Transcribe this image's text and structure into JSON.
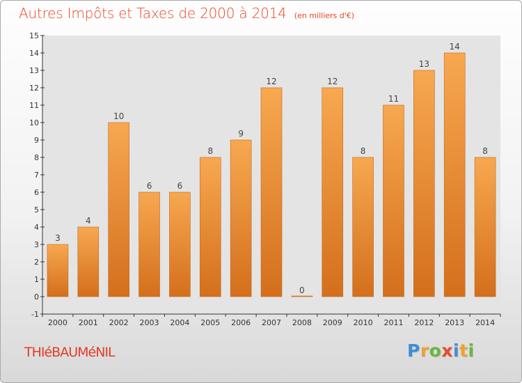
{
  "chart_data": {
    "type": "bar",
    "title": "Autres Impôts et Taxes de 2000 à 2014",
    "subtitle": "(en milliers d'€)",
    "categories": [
      "2000",
      "2001",
      "2002",
      "2003",
      "2004",
      "2005",
      "2006",
      "2007",
      "2008",
      "2009",
      "2010",
      "2011",
      "2012",
      "2013",
      "2014"
    ],
    "values": [
      3,
      4,
      10,
      6,
      6,
      8,
      9,
      12,
      0,
      12,
      8,
      11,
      13,
      14,
      8
    ],
    "ylim": [
      -1,
      15
    ],
    "yticks": [
      -1,
      0,
      1,
      2,
      3,
      4,
      5,
      6,
      7,
      8,
      9,
      10,
      11,
      12,
      13,
      14,
      15
    ],
    "grid": false,
    "xlabel": "",
    "ylabel": "",
    "bar_color": "#f5a04a",
    "bar_color_dark": "#d9731f"
  },
  "footer": {
    "commune": "THIéBAUMéNIL",
    "logo_letters": [
      {
        "ch": "P",
        "color": "#3d8ed8"
      },
      {
        "ch": "r",
        "color": "#f0a030"
      },
      {
        "ch": "o",
        "color": "#67b83c"
      },
      {
        "ch": "x",
        "color": "#e84a2a"
      },
      {
        "ch": "i",
        "color": "#3d8ed8"
      },
      {
        "ch": "t",
        "color": "#f0a030"
      },
      {
        "ch": "i",
        "color": "#67b83c"
      }
    ]
  }
}
